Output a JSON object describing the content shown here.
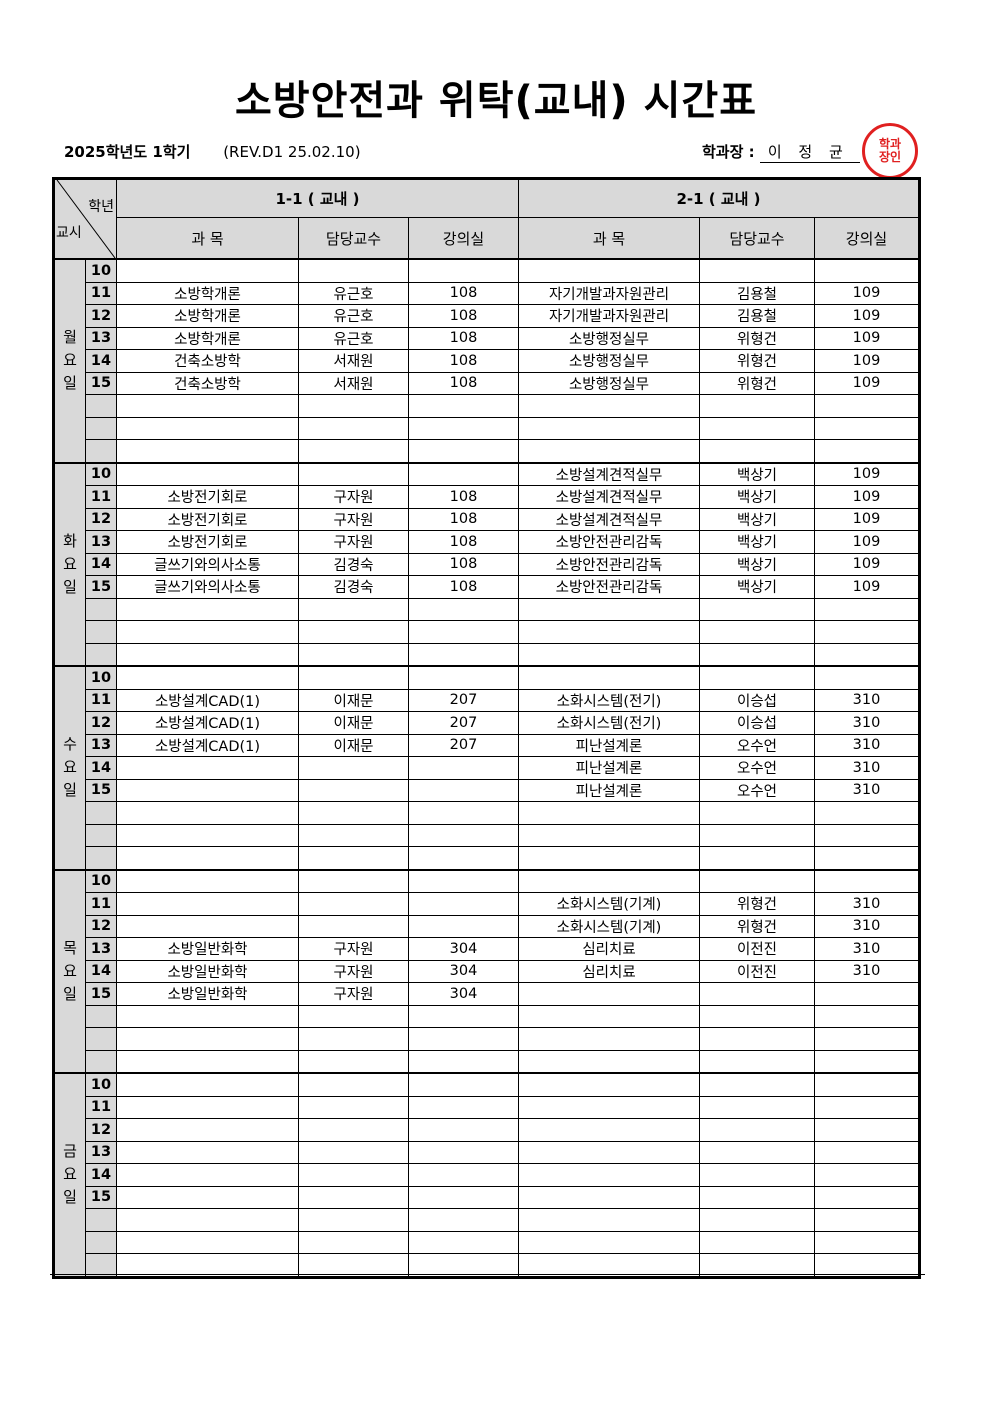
{
  "title": "소방안전과 위탁(교내) 시간표",
  "year_term": "2025학년도 1학기",
  "revision": "(REV.D1  25.02.10)",
  "chair_label": "학과장 :",
  "chair_name": "이 정 균",
  "stamp_text": "학과장인",
  "stamp_color": "#e02020",
  "header": {
    "grade_label": "학년",
    "period_label": "교시",
    "groups": [
      "1-1 ( 교내 )",
      "2-1 ( 교내 )"
    ],
    "columns": [
      "과    목",
      "담당교수",
      "강의실",
      "과    목",
      "담당교수",
      "강의실"
    ]
  },
  "days": [
    {
      "name": "월요일",
      "rows": [
        [
          "10",
          "",
          "",
          "",
          "",
          "",
          ""
        ],
        [
          "11",
          "소방학개론",
          "유근호",
          "108",
          "자기개발과자원관리",
          "김용철",
          "109"
        ],
        [
          "12",
          "소방학개론",
          "유근호",
          "108",
          "자기개발과자원관리",
          "김용철",
          "109"
        ],
        [
          "13",
          "소방학개론",
          "유근호",
          "108",
          "소방행정실무",
          "위형건",
          "109"
        ],
        [
          "14",
          "건축소방학",
          "서재원",
          "108",
          "소방행정실무",
          "위형건",
          "109"
        ],
        [
          "15",
          "건축소방학",
          "서재원",
          "108",
          "소방행정실무",
          "위형건",
          "109"
        ],
        [
          "",
          "",
          "",
          "",
          "",
          "",
          ""
        ],
        [
          "",
          "",
          "",
          "",
          "",
          "",
          ""
        ],
        [
          "",
          "",
          "",
          "",
          "",
          "",
          ""
        ]
      ]
    },
    {
      "name": "화요일",
      "rows": [
        [
          "10",
          "",
          "",
          "",
          "소방설계견적실무",
          "백상기",
          "109"
        ],
        [
          "11",
          "소방전기회로",
          "구자원",
          "108",
          "소방설계견적실무",
          "백상기",
          "109"
        ],
        [
          "12",
          "소방전기회로",
          "구자원",
          "108",
          "소방설계견적실무",
          "백상기",
          "109"
        ],
        [
          "13",
          "소방전기회로",
          "구자원",
          "108",
          "소방안전관리감독",
          "백상기",
          "109"
        ],
        [
          "14",
          "글쓰기와의사소통",
          "김경숙",
          "108",
          "소방안전관리감독",
          "백상기",
          "109"
        ],
        [
          "15",
          "글쓰기와의사소통",
          "김경숙",
          "108",
          "소방안전관리감독",
          "백상기",
          "109"
        ],
        [
          "",
          "",
          "",
          "",
          "",
          "",
          ""
        ],
        [
          "",
          "",
          "",
          "",
          "",
          "",
          ""
        ],
        [
          "",
          "",
          "",
          "",
          "",
          "",
          ""
        ]
      ]
    },
    {
      "name": "수요일",
      "rows": [
        [
          "10",
          "",
          "",
          "",
          "",
          "",
          ""
        ],
        [
          "11",
          "소방설계CAD(1)",
          "이재문",
          "207",
          "소화시스템(전기)",
          "이승섭",
          "310"
        ],
        [
          "12",
          "소방설계CAD(1)",
          "이재문",
          "207",
          "소화시스템(전기)",
          "이승섭",
          "310"
        ],
        [
          "13",
          "소방설계CAD(1)",
          "이재문",
          "207",
          "피난설계론",
          "오수언",
          "310"
        ],
        [
          "14",
          "",
          "",
          "",
          "피난설계론",
          "오수언",
          "310"
        ],
        [
          "15",
          "",
          "",
          "",
          "피난설계론",
          "오수언",
          "310"
        ],
        [
          "",
          "",
          "",
          "",
          "",
          "",
          ""
        ],
        [
          "",
          "",
          "",
          "",
          "",
          "",
          ""
        ],
        [
          "",
          "",
          "",
          "",
          "",
          "",
          ""
        ]
      ]
    },
    {
      "name": "목요일",
      "rows": [
        [
          "10",
          "",
          "",
          "",
          "",
          "",
          ""
        ],
        [
          "11",
          "",
          "",
          "",
          "소화시스템(기계)",
          "위형건",
          "310"
        ],
        [
          "12",
          "",
          "",
          "",
          "소화시스템(기계)",
          "위형건",
          "310"
        ],
        [
          "13",
          "소방일반화학",
          "구자원",
          "304",
          "심리치료",
          "이전진",
          "310"
        ],
        [
          "14",
          "소방일반화학",
          "구자원",
          "304",
          "심리치료",
          "이전진",
          "310"
        ],
        [
          "15",
          "소방일반화학",
          "구자원",
          "304",
          "",
          "",
          ""
        ],
        [
          "",
          "",
          "",
          "",
          "",
          "",
          ""
        ],
        [
          "",
          "",
          "",
          "",
          "",
          "",
          ""
        ],
        [
          "",
          "",
          "",
          "",
          "",
          "",
          ""
        ]
      ]
    },
    {
      "name": "금요일",
      "rows": [
        [
          "10",
          "",
          "",
          "",
          "",
          "",
          ""
        ],
        [
          "11",
          "",
          "",
          "",
          "",
          "",
          ""
        ],
        [
          "12",
          "",
          "",
          "",
          "",
          "",
          ""
        ],
        [
          "13",
          "",
          "",
          "",
          "",
          "",
          ""
        ],
        [
          "14",
          "",
          "",
          "",
          "",
          "",
          ""
        ],
        [
          "15",
          "",
          "",
          "",
          "",
          "",
          ""
        ],
        [
          "",
          "",
          "",
          "",
          "",
          "",
          ""
        ],
        [
          "",
          "",
          "",
          "",
          "",
          "",
          ""
        ],
        [
          "",
          "",
          "",
          "",
          "",
          "",
          ""
        ]
      ]
    }
  ]
}
